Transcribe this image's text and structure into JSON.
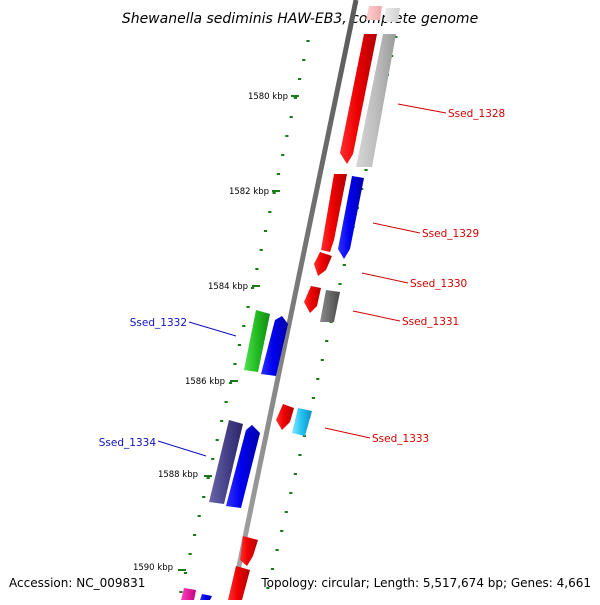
{
  "title": "Shewanella sediminis HAW-EB3, complete genome",
  "accession": "Accession: NC_009831",
  "summary": "Topology: circular; Length: 5,517,674 bp; Genes: 4,661",
  "scale_labels": [
    "1580 kbp",
    "1582 kbp",
    "1584 kbp",
    "1586 kbp",
    "1588 kbp",
    "1590 kbp"
  ],
  "colors": {
    "backbone": "#8a8a8a",
    "tick": "#1a7a1a",
    "label_red": "#d40000",
    "label_blue": "#1010c0"
  },
  "gene_labels": [
    {
      "name": "Ssed_1328",
      "color": "#d40000"
    },
    {
      "name": "Ssed_1329",
      "color": "#d40000"
    },
    {
      "name": "Ssed_1330",
      "color": "#d40000"
    },
    {
      "name": "Ssed_1331",
      "color": "#d40000"
    },
    {
      "name": "Ssed_1332",
      "color": "#1010c0"
    },
    {
      "name": "Ssed_1333",
      "color": "#d40000"
    },
    {
      "name": "Ssed_1334",
      "color": "#1010c0"
    }
  ]
}
